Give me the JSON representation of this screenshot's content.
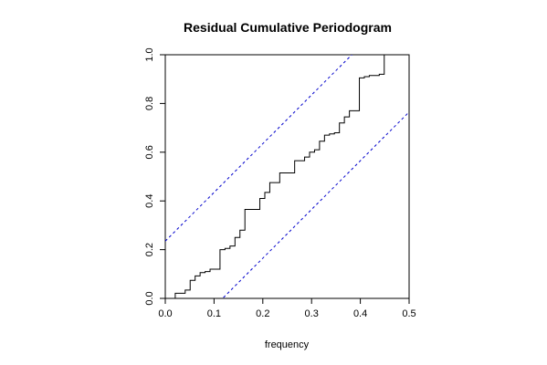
{
  "chart_data": {
    "type": "line",
    "title": "Residual Cumulative Periodogram",
    "xlabel": "frequency",
    "ylabel": "",
    "xlim": [
      0,
      0.5
    ],
    "ylim": [
      0,
      1
    ],
    "xticks": [
      "0.0",
      "0.1",
      "0.2",
      "0.3",
      "0.4",
      "0.5"
    ],
    "yticks": [
      "0.0",
      "0.2",
      "0.4",
      "0.6",
      "0.8",
      "1.0"
    ],
    "grid": false,
    "legend": "none",
    "series": [
      {
        "style": "step",
        "color": "#000000",
        "x": [
          0.0,
          0.0102,
          0.0204,
          0.0306,
          0.0408,
          0.051,
          0.0612,
          0.0714,
          0.0816,
          0.0918,
          0.102,
          0.1122,
          0.1224,
          0.1327,
          0.1429,
          0.1531,
          0.1633,
          0.1735,
          0.1837,
          0.1939,
          0.2041,
          0.2143,
          0.2245,
          0.2347,
          0.2449,
          0.2551,
          0.2653,
          0.2755,
          0.2857,
          0.2959,
          0.3061,
          0.3163,
          0.3265,
          0.3367,
          0.3469,
          0.3571,
          0.3673,
          0.3776,
          0.3878,
          0.398,
          0.4082,
          0.4184,
          0.4286,
          0.4388,
          0.449,
          0.4592,
          0.4694,
          0.4796,
          0.4898,
          0.5
        ],
        "y": [
          0.0,
          0.0,
          0.021,
          0.021,
          0.034,
          0.074,
          0.092,
          0.106,
          0.11,
          0.12,
          0.12,
          0.2,
          0.205,
          0.215,
          0.25,
          0.28,
          0.365,
          0.365,
          0.365,
          0.41,
          0.435,
          0.475,
          0.475,
          0.515,
          0.515,
          0.515,
          0.565,
          0.565,
          0.58,
          0.6,
          0.61,
          0.645,
          0.67,
          0.675,
          0.68,
          0.72,
          0.745,
          0.77,
          0.77,
          0.905,
          0.91,
          0.915,
          0.915,
          0.92,
          1.0,
          1.0,
          1.0,
          1.0,
          1.0,
          1.0
        ]
      },
      {
        "style": "dashed",
        "color": "#0000cc",
        "x": [
          0.0,
          0.5
        ],
        "y": [
          0.235,
          1.235
        ]
      },
      {
        "style": "dashed",
        "color": "#0000cc",
        "x": [
          0.0,
          0.5
        ],
        "y": [
          -0.235,
          0.765
        ]
      }
    ]
  }
}
